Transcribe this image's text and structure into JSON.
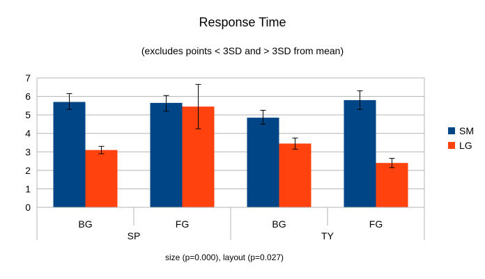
{
  "chart_data": {
    "type": "bar",
    "title": "Response Time",
    "subtitle": "(excludes points < 3SD and > 3SD from mean)",
    "footnote": "size (p=0.000), layout (p=0.027)",
    "groups": [
      "SP",
      "TY"
    ],
    "categories": [
      "BG",
      "FG",
      "BG",
      "FG"
    ],
    "category_group": [
      "SP",
      "SP",
      "TY",
      "TY"
    ],
    "ylim": [
      0,
      7
    ],
    "yticks": [
      "0",
      "1",
      "2",
      "3",
      "4",
      "5",
      "6",
      "7"
    ],
    "grid": true,
    "legend_position": "right",
    "series": [
      {
        "name": "SM",
        "color": "#004586",
        "values": [
          5.7,
          5.65,
          4.85,
          5.8
        ],
        "err_low": [
          5.3,
          5.2,
          4.5,
          5.3
        ],
        "err_high": [
          6.15,
          6.05,
          5.25,
          6.3
        ]
      },
      {
        "name": "LG",
        "color": "#ff420e",
        "values": [
          3.1,
          5.45,
          3.45,
          2.4
        ],
        "err_low": [
          2.9,
          4.25,
          3.15,
          2.15
        ],
        "err_high": [
          3.3,
          6.65,
          3.75,
          2.65
        ]
      }
    ]
  }
}
